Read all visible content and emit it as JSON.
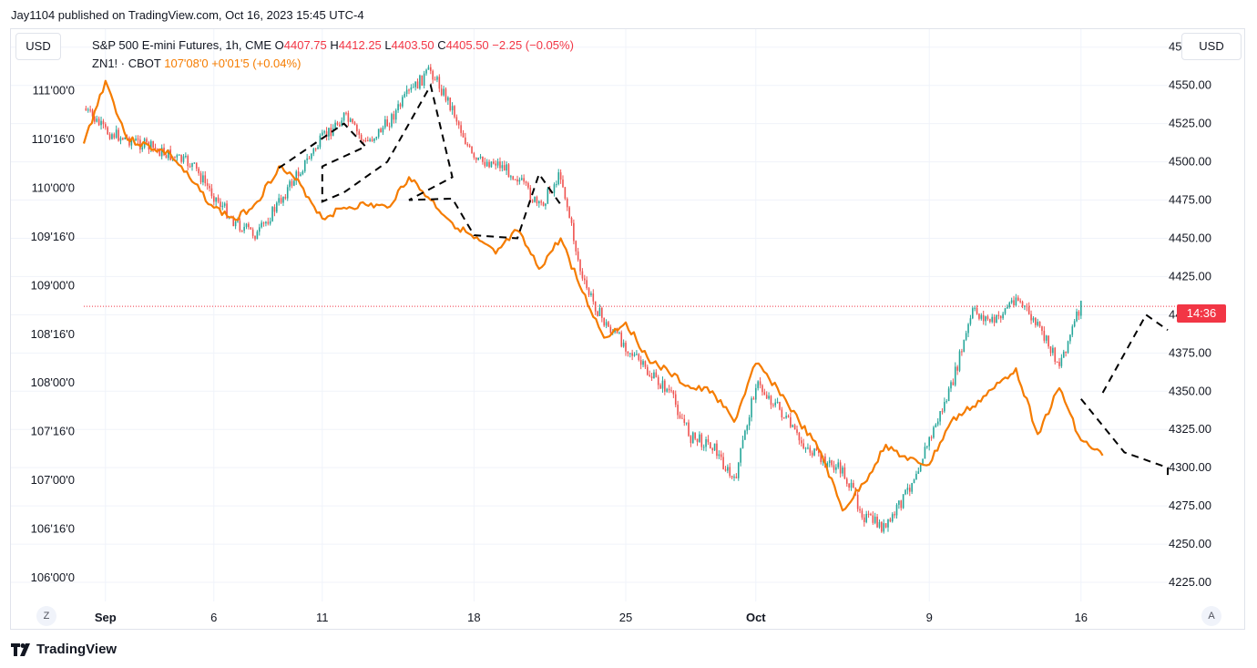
{
  "header": {
    "publisher": "Jay1104 published on TradingView.com, Oct 16, 2023 15:45 UTC-4"
  },
  "toolbar": {
    "left_currency": "USD",
    "right_currency": "USD"
  },
  "legend": {
    "main": {
      "symbol": "S&P 500 E-mini Futures, 1h, CME",
      "o_label": "O",
      "o": "4407.75",
      "h_label": "H",
      "h": "4412.25",
      "l_label": "L",
      "l": "4403.50",
      "c_label": "C",
      "c": "4405.50",
      "change": "−2.25 (−0.05%)"
    },
    "overlay": {
      "symbol": "ZN1! · CBOT",
      "value": "107'08'0",
      "change": "+0'01'5 (+0.04%)"
    }
  },
  "buttons": {
    "z": "Z",
    "a": "A"
  },
  "price_label": "14:36",
  "brand": {
    "name": "TradingView"
  },
  "colors": {
    "up": "#26a69a",
    "down": "#ef5350",
    "overlay": "#f57c00",
    "grid": "#f0f3fa",
    "price_line": "#f23645",
    "projection": "#000000"
  },
  "chart_data": {
    "type": "line",
    "x_ticks": [
      "Sep",
      "6",
      "11",
      "18",
      "25",
      "Oct",
      "9",
      "16"
    ],
    "x_tick_dates": [
      "2023-09-01",
      "2023-09-06",
      "2023-09-11",
      "2023-09-18",
      "2023-09-25",
      "2023-10-01",
      "2023-10-09",
      "2023-10-16"
    ],
    "x_range": [
      "2023-08-31",
      "2023-10-20"
    ],
    "right_axis": {
      "currency": "USD",
      "ylim": [
        4212.5,
        4582
      ],
      "ticks": [
        "4575.00",
        "4550.00",
        "4525.00",
        "4500.00",
        "4475.00",
        "4450.00",
        "4425.00",
        "4400.00",
        "4375.00",
        "4350.00",
        "4325.00",
        "4300.00",
        "4275.00",
        "4250.00",
        "4225.00"
      ]
    },
    "left_axis": {
      "currency": "USD",
      "ticks": [
        "111'00'0",
        "110'16'0",
        "110'00'0",
        "109'16'0",
        "109'00'0",
        "108'16'0",
        "108'00'0",
        "107'16'0",
        "107'00'0",
        "106'16'0",
        "106'00'0"
      ]
    },
    "grid": true,
    "last_price": 4405.5,
    "series": [
      {
        "name": "S&P 500 E-mini Futures, 1h, CME",
        "style": "candles",
        "points": [
          [
            "2023-08-31",
            4535
          ],
          [
            "2023-09-01",
            4520
          ],
          [
            "2023-09-03",
            4510
          ],
          [
            "2023-09-05",
            4498
          ],
          [
            "2023-09-06",
            4478
          ],
          [
            "2023-09-07",
            4460
          ],
          [
            "2023-09-08",
            4452
          ],
          [
            "2023-09-10",
            4495
          ],
          [
            "2023-09-11",
            4515
          ],
          [
            "2023-09-12",
            4530
          ],
          [
            "2023-09-13",
            4512
          ],
          [
            "2023-09-14",
            4525
          ],
          [
            "2023-09-15",
            4545
          ],
          [
            "2023-09-16",
            4560
          ],
          [
            "2023-09-17",
            4535
          ],
          [
            "2023-09-18",
            4500
          ],
          [
            "2023-09-19",
            4500
          ],
          [
            "2023-09-20",
            4490
          ],
          [
            "2023-09-21",
            4470
          ],
          [
            "2023-09-22",
            4492
          ],
          [
            "2023-09-23",
            4422
          ],
          [
            "2023-09-24",
            4395
          ],
          [
            "2023-09-25",
            4380
          ],
          [
            "2023-09-26",
            4362
          ],
          [
            "2023-09-27",
            4350
          ],
          [
            "2023-09-28",
            4320
          ],
          [
            "2023-09-29",
            4315
          ],
          [
            "2023-09-30",
            4290
          ],
          [
            "2023-10-01",
            4355
          ],
          [
            "2023-10-02",
            4340
          ],
          [
            "2023-10-03",
            4318
          ],
          [
            "2023-10-04",
            4305
          ],
          [
            "2023-10-05",
            4298
          ],
          [
            "2023-10-06",
            4268
          ],
          [
            "2023-10-07",
            4260
          ],
          [
            "2023-10-08",
            4285
          ],
          [
            "2023-10-09",
            4318
          ],
          [
            "2023-10-10",
            4352
          ],
          [
            "2023-10-11",
            4402
          ],
          [
            "2023-10-12",
            4395
          ],
          [
            "2023-10-13",
            4412
          ],
          [
            "2023-10-14",
            4392
          ],
          [
            "2023-10-15",
            4368
          ],
          [
            "2023-10-16",
            4405.5
          ]
        ]
      },
      {
        "name": "ZN1! · CBOT",
        "style": "line",
        "points": [
          [
            "2023-08-31",
            4512
          ],
          [
            "2023-09-01",
            4553
          ],
          [
            "2023-09-02",
            4515
          ],
          [
            "2023-09-04",
            4505
          ],
          [
            "2023-09-05",
            4487
          ],
          [
            "2023-09-06",
            4470
          ],
          [
            "2023-09-07",
            4462
          ],
          [
            "2023-09-08",
            4474
          ],
          [
            "2023-09-09",
            4497
          ],
          [
            "2023-09-10",
            4485
          ],
          [
            "2023-09-11",
            4463
          ],
          [
            "2023-09-12",
            4470
          ],
          [
            "2023-09-13",
            4472
          ],
          [
            "2023-09-14",
            4470
          ],
          [
            "2023-09-15",
            4490
          ],
          [
            "2023-09-16",
            4475
          ],
          [
            "2023-09-17",
            4460
          ],
          [
            "2023-09-18",
            4450
          ],
          [
            "2023-09-19",
            4440
          ],
          [
            "2023-09-20",
            4455
          ],
          [
            "2023-09-21",
            4430
          ],
          [
            "2023-09-22",
            4450
          ],
          [
            "2023-09-23",
            4415
          ],
          [
            "2023-09-24",
            4385
          ],
          [
            "2023-09-25",
            4395
          ],
          [
            "2023-09-26",
            4372
          ],
          [
            "2023-09-27",
            4362
          ],
          [
            "2023-09-28",
            4352
          ],
          [
            "2023-09-29",
            4350
          ],
          [
            "2023-09-30",
            4330
          ],
          [
            "2023-10-01",
            4368
          ],
          [
            "2023-10-02",
            4352
          ],
          [
            "2023-10-03",
            4330
          ],
          [
            "2023-10-04",
            4310
          ],
          [
            "2023-10-05",
            4272
          ],
          [
            "2023-10-06",
            4290
          ],
          [
            "2023-10-07",
            4315
          ],
          [
            "2023-10-08",
            4305
          ],
          [
            "2023-10-09",
            4302
          ],
          [
            "2023-10-10",
            4330
          ],
          [
            "2023-10-11",
            4340
          ],
          [
            "2023-10-12",
            4352
          ],
          [
            "2023-10-13",
            4365
          ],
          [
            "2023-10-14",
            4322
          ],
          [
            "2023-10-15",
            4352
          ],
          [
            "2023-10-16",
            4318
          ],
          [
            "2023-10-17",
            4308
          ]
        ]
      },
      {
        "name": "",
        "style": "dashed",
        "points": [
          [
            "2023-09-09",
            4496
          ],
          [
            "2023-09-12",
            4525
          ],
          [
            "2023-09-13",
            4510
          ],
          [
            "2023-09-11",
            4497
          ],
          [
            "2023-09-11",
            4474
          ],
          [
            "2023-09-12",
            4480
          ],
          [
            "2023-09-14",
            4500
          ],
          [
            "2023-09-16",
            4550
          ],
          [
            "2023-09-17",
            4490
          ],
          [
            "2023-09-15",
            4475
          ],
          [
            "2023-09-17",
            4476
          ],
          [
            "2023-09-18",
            4452
          ],
          [
            "2023-09-20",
            4450
          ],
          [
            "2023-09-21",
            4492
          ],
          [
            "2023-09-22",
            4472
          ]
        ]
      },
      {
        "name": "",
        "style": "dashed",
        "points": [
          [
            "2023-10-17",
            4349
          ],
          [
            "2023-10-19",
            4400
          ],
          [
            "2023-10-20",
            4390
          ]
        ]
      },
      {
        "name": "",
        "style": "dashed",
        "points": [
          [
            "2023-10-16",
            4345
          ],
          [
            "2023-10-18",
            4310
          ],
          [
            "2023-10-20",
            4300
          ],
          [
            "2023-10-20",
            4295
          ]
        ]
      }
    ]
  }
}
